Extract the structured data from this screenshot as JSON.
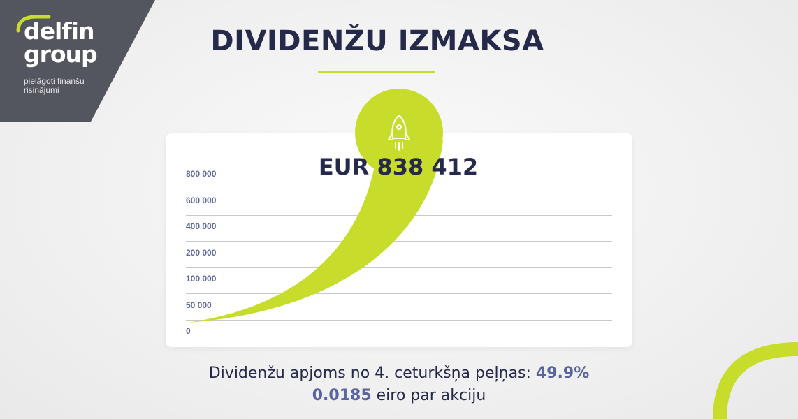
{
  "brand": {
    "name_line1": "delfin",
    "name_line2": "group",
    "tagline": "pielāgoti finanšu risinājumi",
    "accent_color": "#c8dc2c",
    "dark_color": "#54565f"
  },
  "header": {
    "title": "DIVIDENŽU IZMAKSA"
  },
  "chart_data": {
    "type": "area",
    "y_ticks": [
      "800 000",
      "600 000",
      "400 000",
      "200 000",
      "100 000",
      "50 000",
      "0"
    ],
    "highlight_value": "EUR 838 412",
    "icon": "rocket-icon"
  },
  "footer": {
    "line1_text": "Dividenžu apjoms no 4. ceturkšņa peļņas: ",
    "line1_value": "49.9%",
    "line2_value": "0.0185",
    "line2_text": " eiro par akciju"
  }
}
